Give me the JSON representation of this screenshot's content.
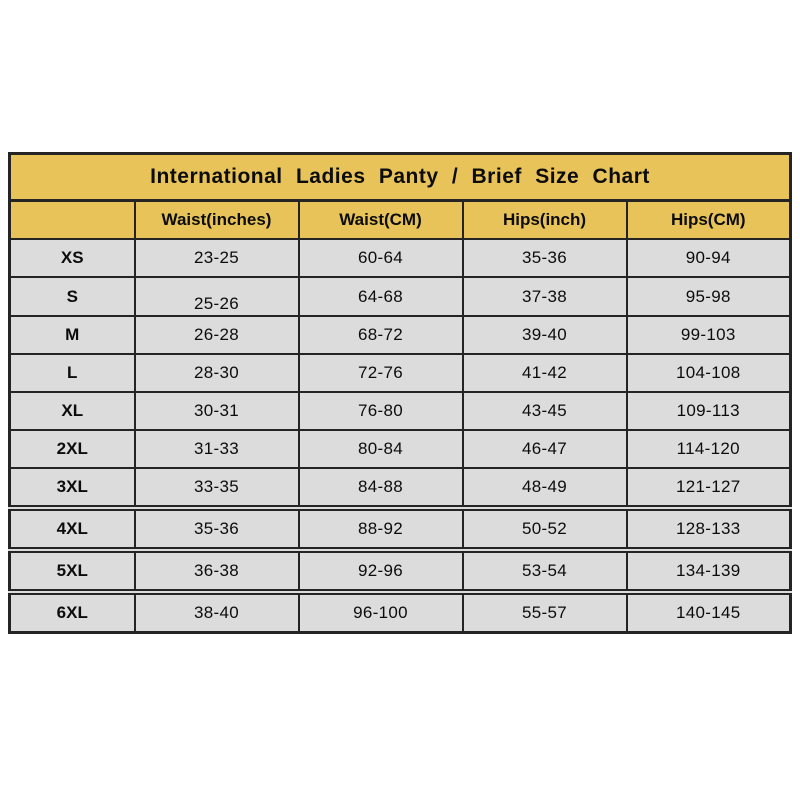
{
  "chart_data": {
    "type": "table",
    "title": "International Ladies Panty / Brief Size Chart",
    "columns": [
      "",
      "Waist(inches)",
      "Waist(CM)",
      "Hips(inch)",
      "Hips(CM)"
    ],
    "rows": [
      [
        "XS",
        "23-25",
        "60-64",
        "35-36",
        "90-94"
      ],
      [
        "S",
        "25-26",
        "64-68",
        "37-38",
        "95-98"
      ],
      [
        "M",
        "26-28",
        "68-72",
        "39-40",
        "99-103"
      ],
      [
        "L",
        "28-30",
        "72-76",
        "41-42",
        "104-108"
      ],
      [
        "XL",
        "30-31",
        "76-80",
        "43-45",
        "109-113"
      ],
      [
        "2XL",
        "31-33",
        "80-84",
        "46-47",
        "114-120"
      ],
      [
        "3XL",
        "33-35",
        "84-88",
        "48-49",
        "121-127"
      ],
      [
        "4XL",
        "35-36",
        "88-92",
        "50-52",
        "128-133"
      ],
      [
        "5XL",
        "36-38",
        "92-96",
        "53-54",
        "134-139"
      ],
      [
        "6XL",
        "38-40",
        "96-100",
        "55-57",
        "140-145"
      ]
    ],
    "layout_hints": {
      "header_background": "#E7C35A",
      "cell_background": "#DCDCDC",
      "border_color": "#242424",
      "page_background": "#FFFFFF",
      "text_color": "#0C0C0C"
    }
  }
}
